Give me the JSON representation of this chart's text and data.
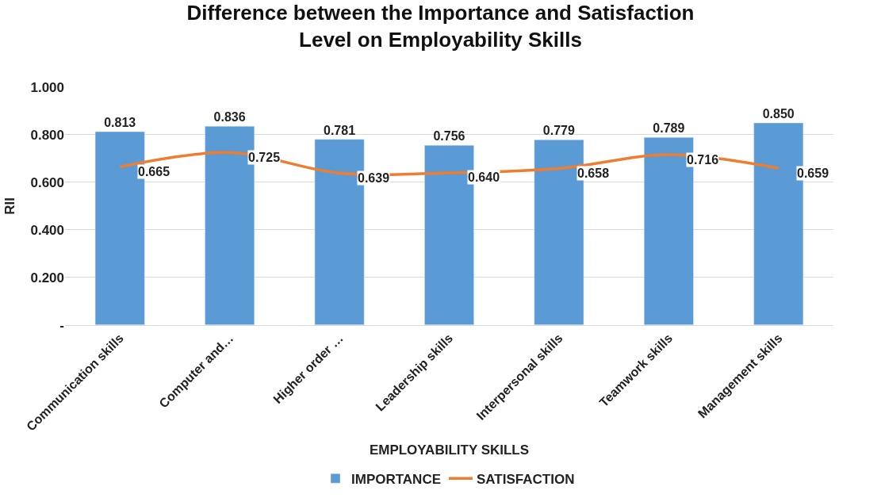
{
  "chart_data": {
    "type": "bar",
    "title": "Difference between the Importance and Satisfaction\nLevel on Employability Skills",
    "xlabel": "EMPLOYABILITY SKILLS",
    "ylabel": "RII",
    "categories": [
      "Communication skills",
      "Computer and…",
      "Higher order …",
      "Leadership skills",
      "Interpersonal skills",
      "Teamwork skills",
      "Management skills"
    ],
    "series": [
      {
        "name": "IMPORTANCE",
        "color": "#5b9bd5",
        "values": [
          0.813,
          0.836,
          0.781,
          0.756,
          0.779,
          0.789,
          0.85
        ],
        "value_labels": [
          "0.813",
          "0.836",
          "0.781",
          "0.756",
          "0.779",
          "0.789",
          "0.850"
        ]
      },
      {
        "name": "SATISFACTION",
        "type": "line",
        "color": "#ed7d31",
        "values": [
          0.665,
          0.725,
          0.639,
          0.64,
          0.658,
          0.716,
          0.659
        ],
        "value_labels": [
          "0.665",
          "0.725",
          "0.639",
          "0.640",
          "0.658",
          "0.716",
          "0.659"
        ]
      }
    ],
    "ylim": [
      0,
      1
    ],
    "yticks": [
      {
        "value": 0,
        "label": "-"
      },
      {
        "value": 0.2,
        "label": "0.200"
      },
      {
        "value": 0.4,
        "label": "0.400"
      },
      {
        "value": 0.6,
        "label": "0.600"
      },
      {
        "value": 0.8,
        "label": "0.800"
      },
      {
        "value": 1.0,
        "label": "1.000"
      }
    ],
    "grid": "y",
    "legend": "bottom",
    "marker": "none",
    "line_style": "solid"
  }
}
